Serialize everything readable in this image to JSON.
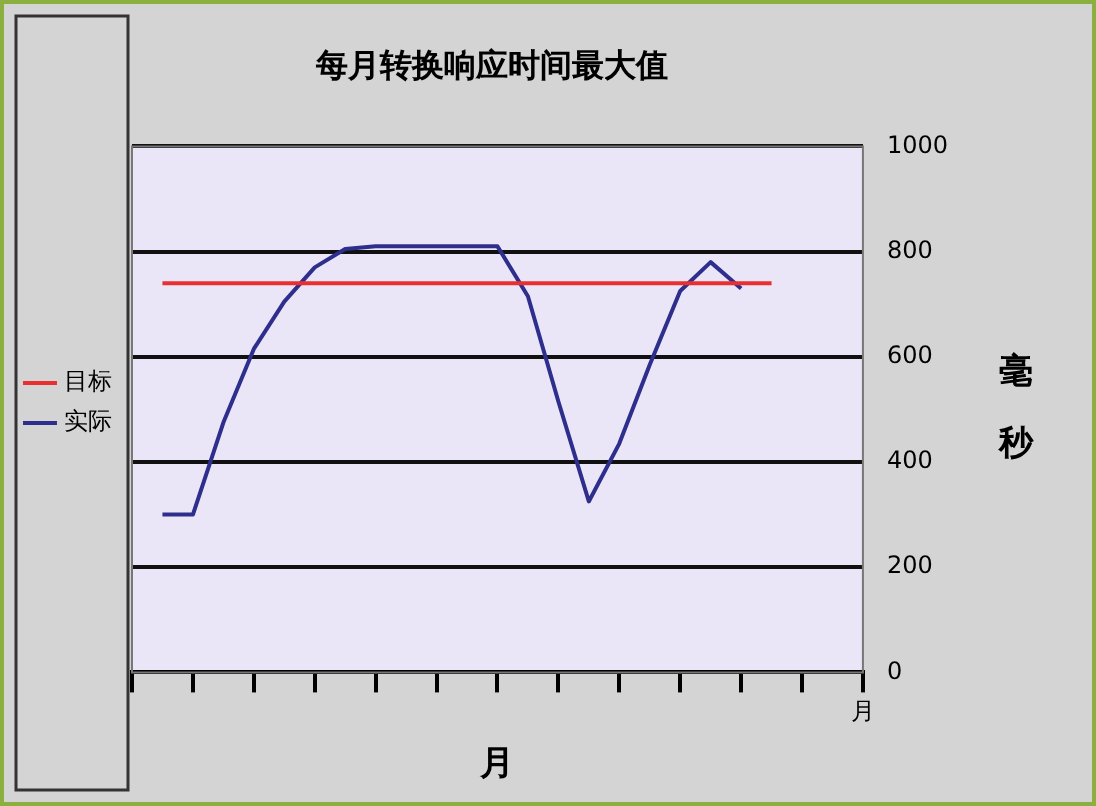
{
  "chart_data": {
    "type": "line",
    "title": "每月转换响应时间最大值",
    "xlabel": "月",
    "ylabel": "毫秒",
    "categories": [
      null,
      null,
      null,
      null,
      null,
      null,
      null,
      null,
      null,
      null,
      null,
      null,
      null,
      null,
      null,
      null,
      null,
      null,
      null,
      null,
      null,
      null,
      null,
      null,
      "月"
    ],
    "ylim": [
      0,
      1000
    ],
    "yticks": [
      0,
      200,
      400,
      600,
      800,
      1000
    ],
    "series": [
      {
        "name": "目标",
        "color": "#e83030",
        "values": [
          null,
          740,
          740,
          740,
          740,
          740,
          740,
          740,
          740,
          740,
          740,
          740,
          740,
          740,
          740,
          740,
          740,
          740,
          740,
          740,
          740,
          740,
          null,
          null,
          null
        ]
      },
      {
        "name": "实际",
        "color": "#2e2e8c",
        "values": [
          null,
          300,
          300,
          475,
          615,
          705,
          770,
          805,
          810,
          810,
          810,
          810,
          810,
          715,
          515,
          325,
          435,
          585,
          725,
          780,
          730,
          null,
          null,
          null,
          null
        ]
      }
    ],
    "grid": "y",
    "legend": "left",
    "marker": "none",
    "line_style": "solid"
  }
}
